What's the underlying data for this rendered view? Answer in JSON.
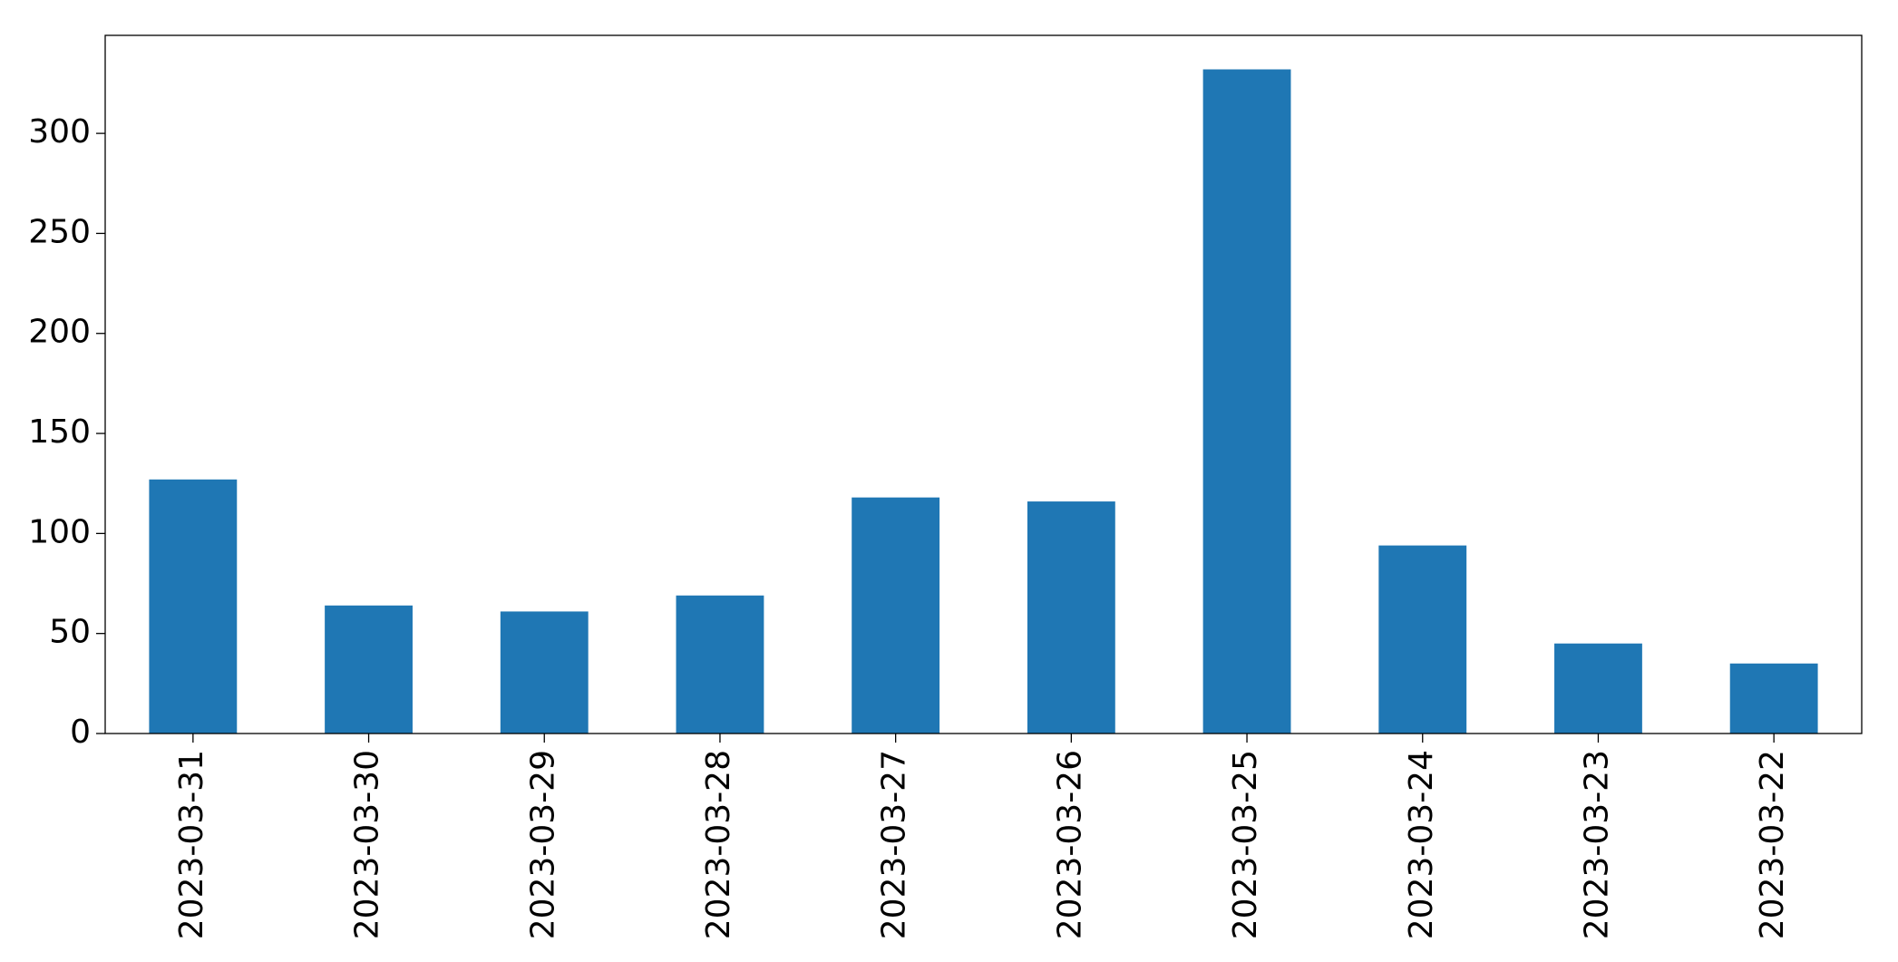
{
  "chart_data": {
    "type": "bar",
    "categories": [
      "2023-03-31",
      "2023-03-30",
      "2023-03-29",
      "2023-03-28",
      "2023-03-27",
      "2023-03-26",
      "2023-03-25",
      "2023-03-24",
      "2023-03-23",
      "2023-03-22"
    ],
    "values": [
      127,
      64,
      61,
      69,
      118,
      116,
      332,
      94,
      45,
      35
    ],
    "color": "#1f77b4",
    "ylim": [
      0,
      349
    ],
    "yticks": [
      0,
      50,
      100,
      150,
      200,
      250,
      300
    ],
    "grid": false
  }
}
